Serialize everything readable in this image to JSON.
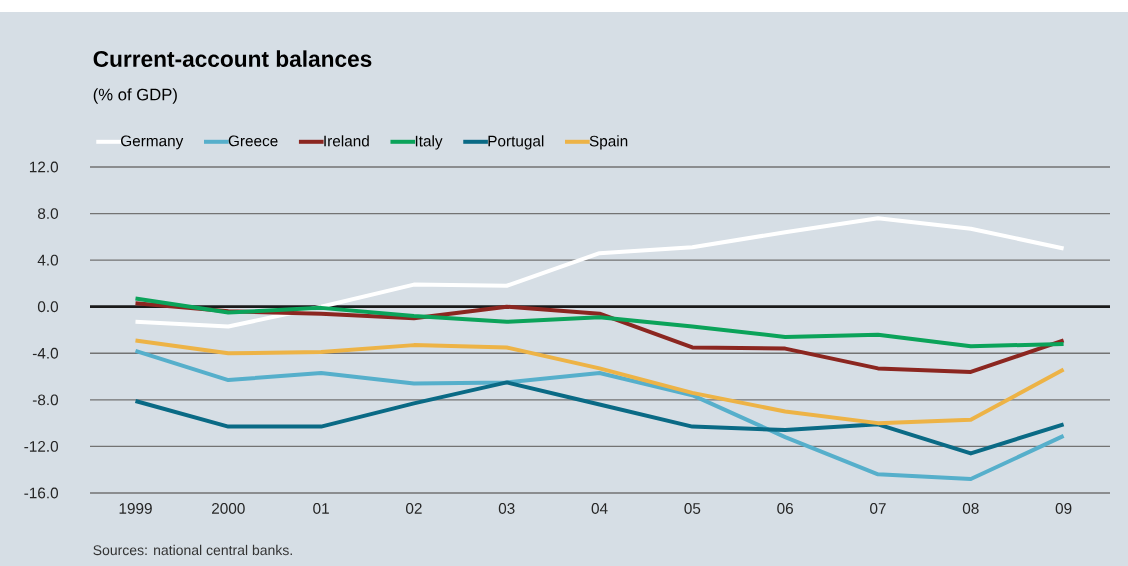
{
  "chart_data": {
    "type": "line",
    "title": "Current-account balances",
    "subtitle": "(% of GDP)",
    "categories": [
      "1999",
      "2000",
      "01",
      "02",
      "03",
      "04",
      "05",
      "06",
      "07",
      "08",
      "09"
    ],
    "series": [
      {
        "name": "Germany",
        "color": "#ffffff",
        "values": [
          -1.3,
          -1.7,
          0.0,
          1.9,
          1.8,
          4.6,
          5.1,
          6.4,
          7.6,
          6.7,
          5.0
        ]
      },
      {
        "name": "Greece",
        "color": "#56afcb",
        "values": [
          -3.8,
          -6.3,
          -5.7,
          -6.6,
          -6.5,
          -5.7,
          -7.6,
          -11.2,
          -14.4,
          -14.8,
          -11.1
        ]
      },
      {
        "name": "Ireland",
        "color": "#8b2620",
        "values": [
          0.3,
          -0.4,
          -0.6,
          -1.0,
          0.0,
          -0.6,
          -3.5,
          -3.6,
          -5.3,
          -5.6,
          -2.9
        ]
      },
      {
        "name": "Italy",
        "color": "#0ba35a",
        "values": [
          0.7,
          -0.5,
          -0.1,
          -0.8,
          -1.3,
          -0.9,
          -1.7,
          -2.6,
          -2.4,
          -3.4,
          -3.2
        ]
      },
      {
        "name": "Portugal",
        "color": "#0a6a85",
        "values": [
          -8.1,
          -10.3,
          -10.3,
          -8.3,
          -6.5,
          -8.4,
          -10.3,
          -10.6,
          -10.1,
          -12.6,
          -10.1
        ]
      },
      {
        "name": "Spain",
        "color": "#edb346",
        "values": [
          -2.9,
          -4.0,
          -3.9,
          -3.3,
          -3.5,
          -5.3,
          -7.4,
          -9.0,
          -10.0,
          -9.7,
          -5.4
        ]
      }
    ],
    "ylim": [
      -16,
      12
    ],
    "yticks": [
      {
        "value": -16,
        "label": "-16.0"
      },
      {
        "value": -12,
        "label": "-12.0"
      },
      {
        "value": -8,
        "label": "-8.0"
      },
      {
        "value": -4,
        "label": "-4.0"
      },
      {
        "value": 0,
        "label": "0.0"
      },
      {
        "value": 4,
        "label": "4.0"
      },
      {
        "value": 8,
        "label": "8.0"
      },
      {
        "value": 12,
        "label": "12.0"
      }
    ],
    "grid": "y",
    "legend": "top",
    "ref_lines": [
      {
        "axis": "y",
        "value": 0,
        "color": "#1a1a1a"
      }
    ],
    "annotations": [
      "Sources: national central banks."
    ]
  }
}
